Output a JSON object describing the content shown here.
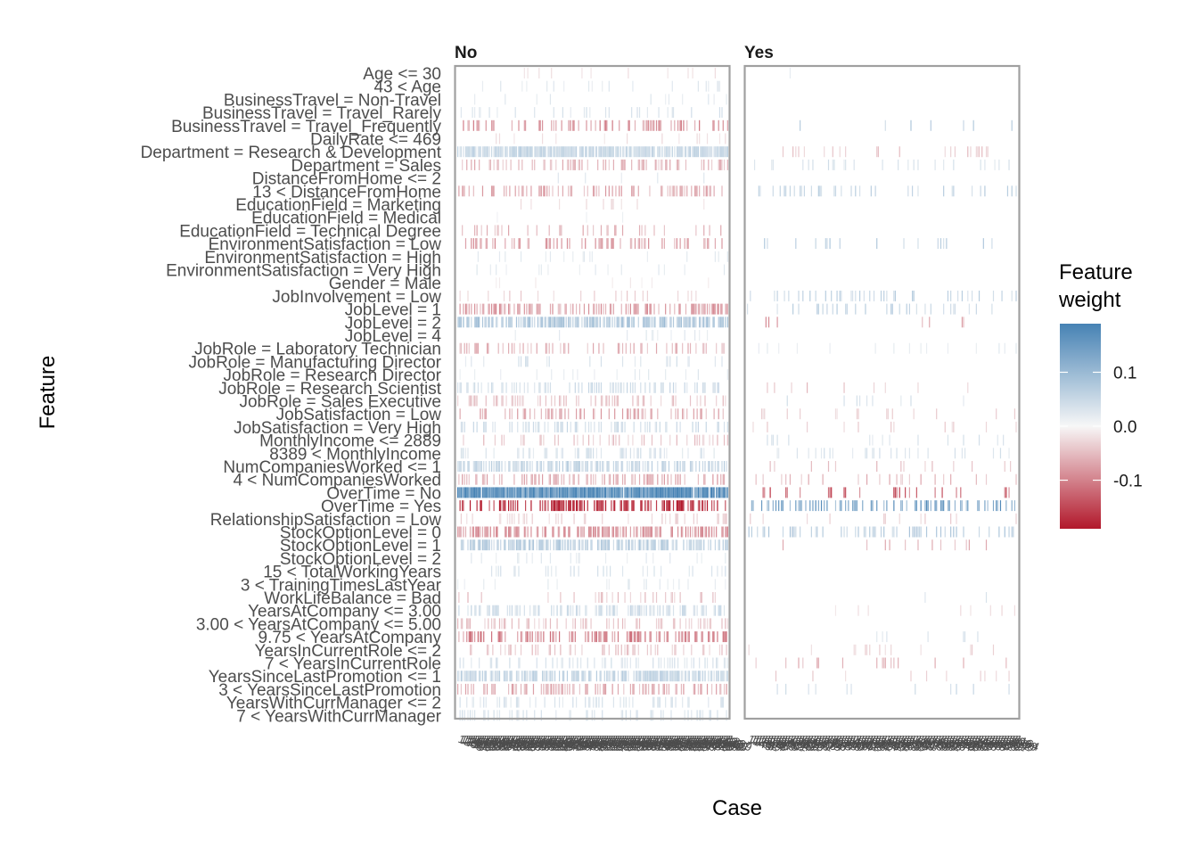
{
  "chart_data": {
    "type": "heatmap",
    "facets": [
      "No",
      "Yes"
    ],
    "xlabel": "Case",
    "ylabel": "Feature",
    "features": [
      "Age <= 30",
      "43 < Age",
      "BusinessTravel = Non-Travel",
      "BusinessTravel = Travel_Rarely",
      "BusinessTravel = Travel_Frequently",
      "DailyRate <= 469",
      "Department = Research & Development",
      "Department = Sales",
      "DistanceFromHome <= 2",
      "13 < DistanceFromHome",
      "EducationField = Marketing",
      "EducationField = Medical",
      "EducationField = Technical Degree",
      "EnvironmentSatisfaction = Low",
      "EnvironmentSatisfaction = High",
      "EnvironmentSatisfaction = Very High",
      "Gender = Male",
      "JobInvolvement = Low",
      "JobLevel = 1",
      "JobLevel = 2",
      "JobLevel = 4",
      "JobRole = Laboratory Technician",
      "JobRole = Manufacturing Director",
      "JobRole = Research Director",
      "JobRole = Research Scientist",
      "JobRole = Sales Executive",
      "JobSatisfaction = Low",
      "JobSatisfaction = Very High",
      "MonthlyIncome <= 2889",
      "8389 < MonthlyIncome",
      "NumCompaniesWorked <= 1",
      "4 < NumCompaniesWorked",
      "OverTime = No",
      "OverTime = Yes",
      "RelationshipSatisfaction = Low",
      "StockOptionLevel = 0",
      "StockOptionLevel = 1",
      "StockOptionLevel = 2",
      "15 < TotalWorkingYears",
      "3 < TrainingTimesLastYear",
      "WorkLifeBalance = Bad",
      "YearsAtCompany <= 3.00",
      "3.00 < YearsAtCompany <= 5.00",
      "9.75 < YearsAtCompany",
      "YearsInCurrentRole <= 2",
      "7 < YearsInCurrentRole",
      "YearsSinceLastPromotion <= 1",
      "3 < YearsSinceLastPromotion",
      "YearsWithCurrManager <= 2",
      "7 < YearsWithCurrManager"
    ],
    "panel_weights": {
      "No": {
        "Age <= 30": {
          "weight": -0.02,
          "density": 0.05
        },
        "43 < Age": {
          "weight": 0.02,
          "density": 0.06
        },
        "BusinessTravel = Non-Travel": {
          "weight": 0.02,
          "density": 0.05
        },
        "BusinessTravel = Travel_Rarely": {
          "weight": 0.03,
          "density": 0.1
        },
        "BusinessTravel = Travel_Frequently": {
          "weight": -0.08,
          "density": 0.25
        },
        "DailyRate <= 469": {
          "weight": -0.02,
          "density": 0.06
        },
        "Department = Research & Development": {
          "weight": 0.05,
          "density": 0.85
        },
        "Department = Sales": {
          "weight": -0.05,
          "density": 0.3
        },
        "DistanceFromHome <= 2": {
          "weight": 0.02,
          "density": 0.06
        },
        "13 < DistanceFromHome": {
          "weight": -0.06,
          "density": 0.3
        },
        "EducationField = Marketing": {
          "weight": -0.02,
          "density": 0.05
        },
        "EducationField = Medical": {
          "weight": 0.01,
          "density": 0.03
        },
        "EducationField = Technical Degree": {
          "weight": -0.05,
          "density": 0.15
        },
        "EnvironmentSatisfaction = Low": {
          "weight": -0.07,
          "density": 0.2
        },
        "EnvironmentSatisfaction = High": {
          "weight": 0.02,
          "density": 0.05
        },
        "EnvironmentSatisfaction = Very High": {
          "weight": 0.02,
          "density": 0.05
        },
        "Gender = Male": {
          "weight": -0.01,
          "density": 0.04
        },
        "JobInvolvement = Low": {
          "weight": -0.03,
          "density": 0.08
        },
        "JobLevel = 1": {
          "weight": -0.07,
          "density": 0.45
        },
        "JobLevel = 2": {
          "weight": 0.07,
          "density": 0.6
        },
        "JobLevel = 4": {
          "weight": 0.02,
          "density": 0.05
        },
        "JobRole = Laboratory Technician": {
          "weight": -0.05,
          "density": 0.2
        },
        "JobRole = Manufacturing Director": {
          "weight": 0.03,
          "density": 0.1
        },
        "JobRole = Research Director": {
          "weight": 0.02,
          "density": 0.05
        },
        "JobRole = Research Scientist": {
          "weight": 0.04,
          "density": 0.3
        },
        "JobRole = Sales Executive": {
          "weight": -0.04,
          "density": 0.25
        },
        "JobSatisfaction = Low": {
          "weight": -0.06,
          "density": 0.3
        },
        "JobSatisfaction = Very High": {
          "weight": 0.04,
          "density": 0.25
        },
        "MonthlyIncome <= 2889": {
          "weight": -0.04,
          "density": 0.2
        },
        "8389 < MonthlyIncome": {
          "weight": 0.03,
          "density": 0.2
        },
        "NumCompaniesWorked <= 1": {
          "weight": 0.05,
          "density": 0.55
        },
        "4 < NumCompaniesWorked": {
          "weight": -0.06,
          "density": 0.35
        },
        "OverTime = No": {
          "weight": 0.17,
          "density": 0.95
        },
        "OverTime = Yes": {
          "weight": -0.17,
          "density": 0.4
        },
        "RelationshipSatisfaction = Low": {
          "weight": -0.03,
          "density": 0.15
        },
        "StockOptionLevel = 0": {
          "weight": -0.08,
          "density": 0.5
        },
        "StockOptionLevel = 1": {
          "weight": 0.06,
          "density": 0.6
        },
        "StockOptionLevel = 2": {
          "weight": 0.02,
          "density": 0.05
        },
        "15 < TotalWorkingYears": {
          "weight": 0.03,
          "density": 0.1
        },
        "3 < TrainingTimesLastYear": {
          "weight": 0.02,
          "density": 0.1
        },
        "WorkLifeBalance = Bad": {
          "weight": -0.04,
          "density": 0.1
        },
        "YearsAtCompany <= 3.00": {
          "weight": 0.04,
          "density": 0.45
        },
        "3.00 < YearsAtCompany <= 5.00": {
          "weight": -0.04,
          "density": 0.3
        },
        "9.75 < YearsAtCompany": {
          "weight": -0.09,
          "density": 0.4
        },
        "YearsInCurrentRole <= 2": {
          "weight": -0.04,
          "density": 0.2
        },
        "7 < YearsInCurrentRole": {
          "weight": 0.03,
          "density": 0.2
        },
        "YearsSinceLastPromotion <= 1": {
          "weight": 0.05,
          "density": 0.7
        },
        "3 < YearsSinceLastPromotion": {
          "weight": -0.06,
          "density": 0.35
        },
        "YearsWithCurrManager <= 2": {
          "weight": 0.03,
          "density": 0.25
        },
        "7 < YearsWithCurrManager": {
          "weight": 0.03,
          "density": 0.2
        }
      },
      "Yes": {
        "Age <= 30": {
          "weight": 0.02,
          "density": 0.01
        },
        "BusinessTravel = Travel_Frequently": {
          "weight": 0.06,
          "density": 0.06
        },
        "Department = Research & Development": {
          "weight": -0.04,
          "density": 0.15
        },
        "Department = Sales": {
          "weight": 0.03,
          "density": 0.12
        },
        "13 < DistanceFromHome": {
          "weight": 0.05,
          "density": 0.12
        },
        "EnvironmentSatisfaction = Low": {
          "weight": 0.06,
          "density": 0.12
        },
        "JobInvolvement = Low": {
          "weight": 0.05,
          "density": 0.15
        },
        "JobLevel = 1": {
          "weight": 0.05,
          "density": 0.15
        },
        "JobLevel = 2": {
          "weight": -0.07,
          "density": 0.05
        },
        "JobRole = Laboratory Technician": {
          "weight": 0.02,
          "density": 0.05
        },
        "JobRole = Research Scientist": {
          "weight": -0.04,
          "density": 0.06
        },
        "JobRole = Sales Executive": {
          "weight": 0.03,
          "density": 0.05
        },
        "JobSatisfaction = Low": {
          "weight": -0.03,
          "density": 0.1
        },
        "JobSatisfaction = Very High": {
          "weight": -0.03,
          "density": 0.08
        },
        "MonthlyIncome <= 2889": {
          "weight": 0.03,
          "density": 0.1
        },
        "8389 < MonthlyIncome": {
          "weight": 0.03,
          "density": 0.1
        },
        "NumCompaniesWorked <= 1": {
          "weight": -0.04,
          "density": 0.12
        },
        "4 < NumCompaniesWorked": {
          "weight": -0.05,
          "density": 0.1
        },
        "OverTime = No": {
          "weight": -0.12,
          "density": 0.08
        },
        "OverTime = Yes": {
          "weight": 0.13,
          "density": 0.35
        },
        "RelationshipSatisfaction = Low": {
          "weight": -0.03,
          "density": 0.05
        },
        "StockOptionLevel = 0": {
          "weight": 0.06,
          "density": 0.25
        },
        "StockOptionLevel = 1": {
          "weight": -0.05,
          "density": 0.04
        },
        "WorkLifeBalance = Bad": {
          "weight": 0.03,
          "density": 0.01
        },
        "YearsAtCompany <= 3.00": {
          "weight": -0.02,
          "density": 0.06
        },
        "9.75 < YearsAtCompany": {
          "weight": 0.03,
          "density": 0.04
        },
        "YearsInCurrentRole <= 2": {
          "weight": -0.03,
          "density": 0.06
        },
        "7 < YearsInCurrentRole": {
          "weight": -0.05,
          "density": 0.1
        },
        "YearsSinceLastPromotion <= 1": {
          "weight": -0.03,
          "density": 0.05
        },
        "3 < YearsSinceLastPromotion": {
          "weight": 0.04,
          "density": 0.05
        }
      }
    },
    "legend": {
      "title": "Feature weight",
      "ticks": [
        {
          "value": 0.1,
          "label": "0.1"
        },
        {
          "value": 0.0,
          "label": "0.0"
        },
        {
          "value": -0.1,
          "label": "-0.1"
        }
      ],
      "limits": [
        -0.19,
        0.19
      ],
      "low_color": "#b2182b",
      "mid_color": "#f7f7f7",
      "high_color": "#4682b4"
    }
  }
}
